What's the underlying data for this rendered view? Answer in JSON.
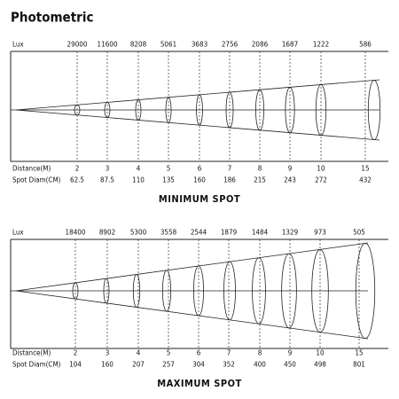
{
  "title": "Photometric",
  "panels": [
    {
      "lux_label": "Lux",
      "lux": [
        29000,
        11600,
        8208,
        5061,
        3683,
        2756,
        2086,
        1687,
        1222,
        586
      ],
      "distance_label": "Distance(M)",
      "distances": [
        2,
        3,
        4,
        5,
        6,
        7,
        8,
        9,
        10,
        15
      ],
      "spot_label": "Spot Diam(CM)",
      "spot_diameters": [
        62.5,
        87.5,
        110,
        135,
        160,
        186,
        215,
        243,
        272,
        432
      ],
      "caption": "MINIMUM SPOT"
    },
    {
      "lux_label": "Lux",
      "lux": [
        18400,
        8902,
        5300,
        3558,
        2544,
        1879,
        1484,
        1329,
        973,
        505
      ],
      "distance_label": "Distance(M)",
      "distances": [
        2,
        3,
        4,
        5,
        6,
        7,
        8,
        9,
        10,
        15
      ],
      "spot_label": "Spot Diam(CM)",
      "spot_diameters": [
        104,
        160,
        207,
        257,
        304,
        352,
        400,
        450,
        498,
        801
      ],
      "caption": "MAXIMUM SPOT"
    }
  ]
}
